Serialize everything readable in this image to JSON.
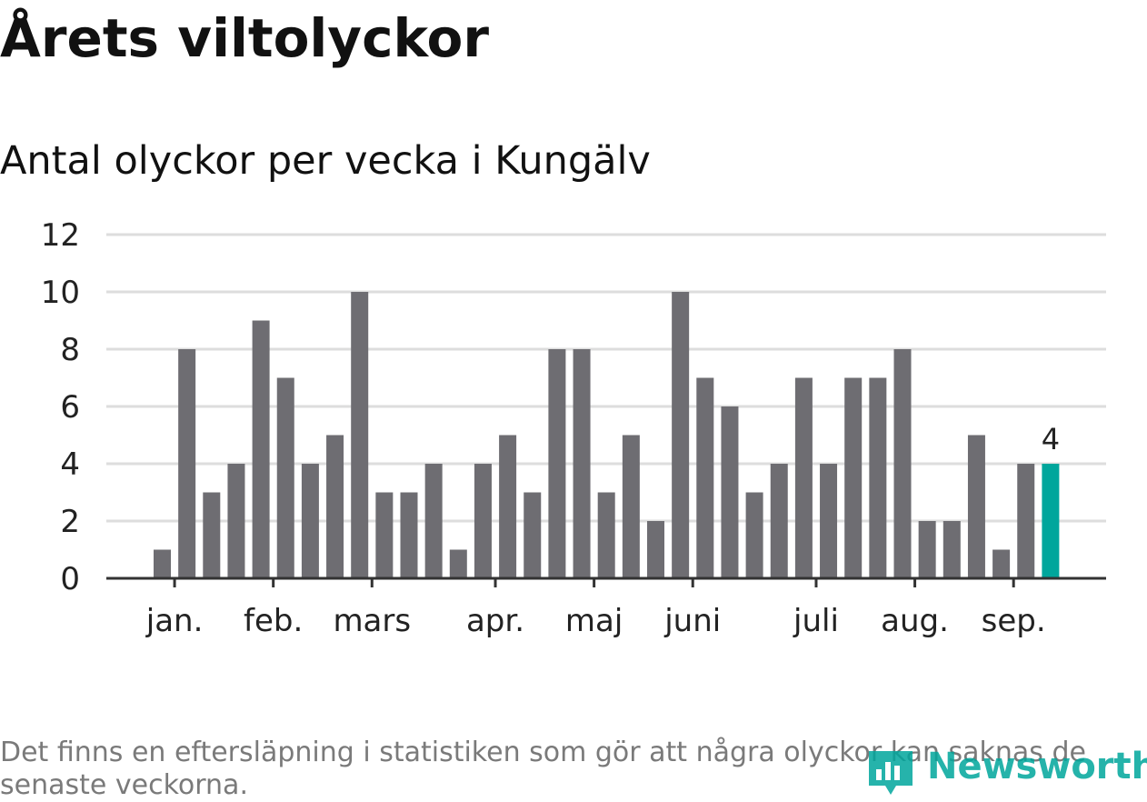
{
  "header": {
    "title": "Årets viltolyckor",
    "subtitle": "Antal olyckor per vecka i Kungälv"
  },
  "footer": {
    "note": "Det finns en eftersläpning i statistiken som gör att några olyckor kan saknas de senaste veckorna.",
    "logo_text": "Newsworthy"
  },
  "colors": {
    "bar": "#6e6d72",
    "highlight": "#00a69c",
    "grid": "#dddddd",
    "axis": "#333333"
  },
  "chart_data": {
    "type": "bar",
    "title": "Antal olyckor per vecka i Kungälv",
    "xlabel": "",
    "ylabel": "",
    "ylim": [
      0,
      12
    ],
    "yticks": [
      0,
      2,
      4,
      6,
      8,
      10,
      12
    ],
    "grid": true,
    "months": [
      "jan.",
      "feb.",
      "mars",
      "apr.",
      "maj",
      "juni",
      "juli",
      "aug.",
      "sep."
    ],
    "month_week_index": [
      0.5,
      4.5,
      8.5,
      13.5,
      17.5,
      21.5,
      26.5,
      30.5,
      34.5
    ],
    "values": [
      1,
      8,
      3,
      4,
      9,
      7,
      4,
      5,
      10,
      3,
      3,
      4,
      1,
      4,
      5,
      3,
      8,
      8,
      3,
      5,
      2,
      10,
      7,
      6,
      3,
      4,
      7,
      4,
      7,
      7,
      8,
      2,
      2,
      5,
      1,
      4,
      4
    ],
    "highlight_last": true,
    "last_value_label": "4"
  }
}
